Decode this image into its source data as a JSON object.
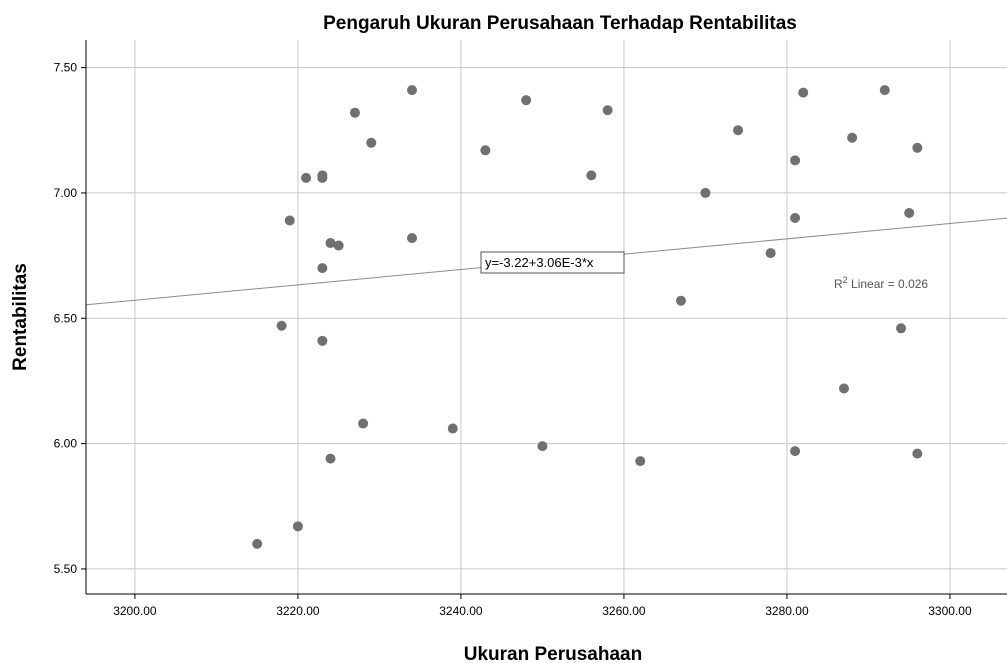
{
  "chart_data": {
    "type": "scatter",
    "title": "Pengaruh Ukuran Perusahaan Terhadap Rentabilitas",
    "xlabel": "Ukuran Perusahaan",
    "ylabel": "Rentabilitas",
    "xlim": [
      3194,
      3307
    ],
    "ylim": [
      5.4,
      7.61
    ],
    "xticks": [
      3200,
      3220,
      3240,
      3260,
      3280,
      3300
    ],
    "xtick_labels": [
      "3200.00",
      "3220.00",
      "3240.00",
      "3260.00",
      "3280.00",
      "3300.00"
    ],
    "yticks": [
      5.5,
      6.0,
      6.5,
      7.0,
      7.5
    ],
    "ytick_labels": [
      "5.50",
      "6.00",
      "6.50",
      "7.00",
      "7.50"
    ],
    "grid": true,
    "colors": {
      "point": "#707070",
      "grid": "#c8c8c8",
      "fit_line": "#8c8c8c",
      "axis": "#000000"
    },
    "fit_line": {
      "equation": "y=-3.22+3.06E-3*x",
      "intercept": -3.22,
      "slope": 0.00306,
      "r2_prefix": "R",
      "r2_superscript": "2",
      "r2_suffix": " Linear = 0.026"
    },
    "points": [
      {
        "x": 3215,
        "y": 5.6
      },
      {
        "x": 3218,
        "y": 6.47
      },
      {
        "x": 3219,
        "y": 6.89
      },
      {
        "x": 3220,
        "y": 5.67
      },
      {
        "x": 3221,
        "y": 7.06
      },
      {
        "x": 3223,
        "y": 7.07
      },
      {
        "x": 3223,
        "y": 7.06
      },
      {
        "x": 3223,
        "y": 6.7
      },
      {
        "x": 3223,
        "y": 6.41
      },
      {
        "x": 3224,
        "y": 6.8
      },
      {
        "x": 3224,
        "y": 5.94
      },
      {
        "x": 3225,
        "y": 6.79
      },
      {
        "x": 3227,
        "y": 7.32
      },
      {
        "x": 3228,
        "y": 6.08
      },
      {
        "x": 3229,
        "y": 7.2
      },
      {
        "x": 3234,
        "y": 7.41
      },
      {
        "x": 3234,
        "y": 6.82
      },
      {
        "x": 3239,
        "y": 6.06
      },
      {
        "x": 3243,
        "y": 7.17
      },
      {
        "x": 3248,
        "y": 7.37
      },
      {
        "x": 3250,
        "y": 5.99
      },
      {
        "x": 3256,
        "y": 7.07
      },
      {
        "x": 3258,
        "y": 7.33
      },
      {
        "x": 3262,
        "y": 5.93
      },
      {
        "x": 3267,
        "y": 6.57
      },
      {
        "x": 3270,
        "y": 7.0
      },
      {
        "x": 3274,
        "y": 7.25
      },
      {
        "x": 3278,
        "y": 6.76
      },
      {
        "x": 3281,
        "y": 7.13
      },
      {
        "x": 3281,
        "y": 6.9
      },
      {
        "x": 3281,
        "y": 5.97
      },
      {
        "x": 3282,
        "y": 7.4
      },
      {
        "x": 3287,
        "y": 6.22
      },
      {
        "x": 3288,
        "y": 7.22
      },
      {
        "x": 3292,
        "y": 7.41
      },
      {
        "x": 3294,
        "y": 6.46
      },
      {
        "x": 3295,
        "y": 6.92
      },
      {
        "x": 3296,
        "y": 7.18
      },
      {
        "x": 3296,
        "y": 5.96
      }
    ]
  }
}
